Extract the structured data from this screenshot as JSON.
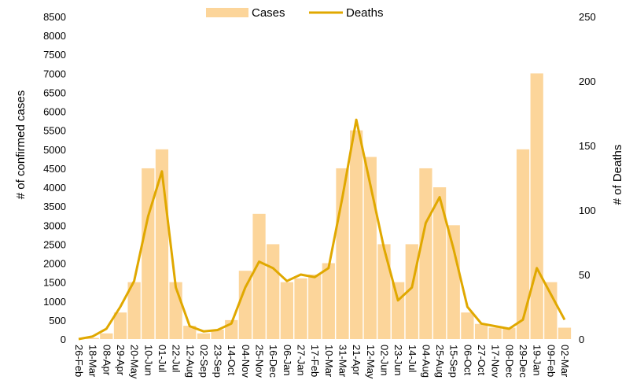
{
  "chart_data": {
    "type": "bar",
    "legend": {
      "placement": "top-center",
      "entries": [
        "Cases",
        "Deaths"
      ]
    },
    "colors": {
      "cases": "#fcd59a",
      "deaths": "#e0a800"
    },
    "ylabel": "# of confirmed cases",
    "y2label": "# of Deaths",
    "ylim": [
      0,
      8500
    ],
    "y2lim": [
      0,
      250
    ],
    "yticks": [
      0,
      500,
      1000,
      1500,
      2000,
      2500,
      3000,
      3500,
      4000,
      4500,
      5000,
      5500,
      6000,
      6500,
      7000,
      7500,
      8000,
      8500
    ],
    "y2ticks": [
      0,
      50,
      100,
      150,
      200,
      250
    ],
    "grid": false,
    "x_tick_labels": [
      "26-Feb",
      "18-Mar",
      "08-Apr",
      "29-Apr",
      "20-May",
      "10-Jun",
      "01-Jul",
      "22-Jul",
      "12-Aug",
      "02-Sep",
      "23-Sep",
      "14-Oct",
      "04-Nov",
      "25-Nov",
      "16-Dec",
      "06-Jan",
      "27-Jan",
      "17-Feb",
      "10-Mar",
      "31-Mar",
      "21-Apr",
      "12-May",
      "02-Jun",
      "23-Jun",
      "14-Jul",
      "04-Aug",
      "25-Aug",
      "15-Sep",
      "06-Oct",
      "27-Oct",
      "17-Nov",
      "08-Dec",
      "29-Dec",
      "19-Jan",
      "09-Feb",
      "02-Mar"
    ],
    "series": [
      {
        "name": "Cases",
        "axis": "left",
        "chart_type": "bar",
        "values": [
          0,
          30,
          150,
          700,
          1500,
          4500,
          5000,
          1500,
          350,
          150,
          250,
          500,
          1800,
          3300,
          2500,
          1500,
          1600,
          1700,
          2000,
          4500,
          5500,
          4800,
          2500,
          1500,
          2500,
          4500,
          4000,
          3000,
          700,
          400,
          300,
          300,
          5000,
          7000,
          1500,
          300
        ]
      },
      {
        "name": "Deaths",
        "axis": "right",
        "chart_type": "line",
        "values": [
          0,
          2,
          8,
          25,
          45,
          95,
          130,
          40,
          10,
          6,
          7,
          12,
          40,
          60,
          55,
          45,
          50,
          48,
          55,
          110,
          170,
          120,
          70,
          30,
          40,
          90,
          110,
          70,
          25,
          12,
          10,
          8,
          15,
          55,
          35,
          15
        ]
      }
    ]
  }
}
